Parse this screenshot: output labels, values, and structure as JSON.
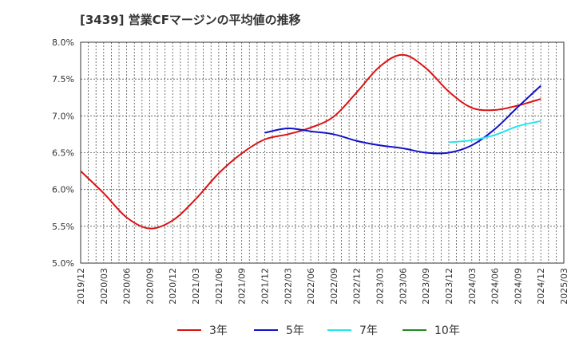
{
  "chart_data": {
    "type": "line",
    "title": "[3439]  営業CFマージンの平均値の推移",
    "xlabel": "",
    "ylabel": "",
    "x_ticks": [
      "2019/12",
      "2020/03",
      "2020/06",
      "2020/09",
      "2020/12",
      "2021/03",
      "2021/06",
      "2021/09",
      "2021/12",
      "2022/03",
      "2022/06",
      "2022/09",
      "2022/12",
      "2023/03",
      "2023/06",
      "2023/09",
      "2023/12",
      "2024/03",
      "2024/06",
      "2024/09",
      "2024/12",
      "2025/03"
    ],
    "y_ticks": [
      "5.0%",
      "5.5%",
      "6.0%",
      "6.5%",
      "7.0%",
      "7.5%",
      "8.0%"
    ],
    "ylim": [
      5.0,
      8.0
    ],
    "grid": true,
    "legend_position": "bottom",
    "series": [
      {
        "name": "3年",
        "color": "#dd1111",
        "points": [
          [
            "2019/12",
            6.25
          ],
          [
            "2020/03",
            5.95
          ],
          [
            "2020/06",
            5.62
          ],
          [
            "2020/09",
            5.47
          ],
          [
            "2020/12",
            5.58
          ],
          [
            "2021/03",
            5.87
          ],
          [
            "2021/06",
            6.22
          ],
          [
            "2021/09",
            6.49
          ],
          [
            "2021/12",
            6.68
          ],
          [
            "2022/03",
            6.75
          ],
          [
            "2022/06",
            6.84
          ],
          [
            "2022/09",
            6.99
          ],
          [
            "2022/12",
            7.32
          ],
          [
            "2023/03",
            7.67
          ],
          [
            "2023/06",
            7.83
          ],
          [
            "2023/09",
            7.65
          ],
          [
            "2023/12",
            7.33
          ],
          [
            "2024/03",
            7.11
          ],
          [
            "2024/06",
            7.08
          ],
          [
            "2024/09",
            7.14
          ],
          [
            "2024/12",
            7.23
          ]
        ]
      },
      {
        "name": "5年",
        "color": "#1111cc",
        "points": [
          [
            "2021/12",
            6.77
          ],
          [
            "2022/03",
            6.83
          ],
          [
            "2022/06",
            6.79
          ],
          [
            "2022/09",
            6.75
          ],
          [
            "2022/12",
            6.66
          ],
          [
            "2023/03",
            6.6
          ],
          [
            "2023/06",
            6.56
          ],
          [
            "2023/09",
            6.5
          ],
          [
            "2023/12",
            6.5
          ],
          [
            "2024/03",
            6.6
          ],
          [
            "2024/06",
            6.82
          ],
          [
            "2024/09",
            7.12
          ],
          [
            "2024/12",
            7.41
          ]
        ]
      },
      {
        "name": "7年",
        "color": "#22e5ee",
        "points": [
          [
            "2023/12",
            6.64
          ],
          [
            "2024/03",
            6.67
          ],
          [
            "2024/06",
            6.74
          ],
          [
            "2024/09",
            6.86
          ],
          [
            "2024/12",
            6.93
          ]
        ]
      },
      {
        "name": "10年",
        "color": "#228822",
        "points": []
      }
    ]
  }
}
